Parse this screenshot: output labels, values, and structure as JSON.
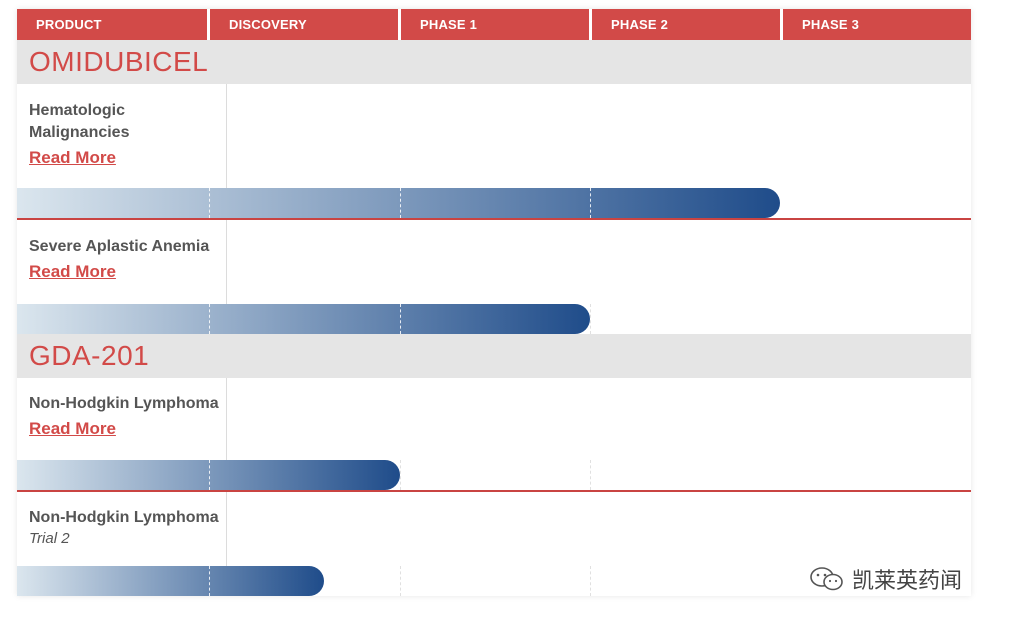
{
  "header": {
    "columns": [
      "PRODUCT",
      "DISCOVERY",
      "PHASE 1",
      "PHASE 2",
      "PHASE 3"
    ]
  },
  "read_more_label": "Read More",
  "colors": {
    "header_bg": "#d24a48",
    "accent_red": "#d24a48",
    "band_bg": "#e5e5e5",
    "bar_start": "#dbe6ee",
    "bar_end": "#1f4c8a"
  },
  "products": [
    {
      "name": "OMIDUBICEL",
      "programs": [
        {
          "indication": [
            "Hematologic",
            "Malignancies"
          ],
          "subtitle": "",
          "read_more": true,
          "progress_stage": "PHASE 3",
          "progress_fraction_of_stage": 0.0
        },
        {
          "indication": [
            "Severe Aplastic Anemia"
          ],
          "subtitle": "",
          "read_more": true,
          "progress_stage": "PHASE 2",
          "progress_fraction_of_stage": 0.0
        }
      ]
    },
    {
      "name": "GDA-201",
      "programs": [
        {
          "indication": [
            "Non-Hodgkin Lymphoma"
          ],
          "subtitle": "",
          "read_more": true,
          "progress_stage": "PHASE 1",
          "progress_fraction_of_stage": 0.0
        },
        {
          "indication": [
            "Non-Hodgkin Lymphoma"
          ],
          "subtitle": "Trial 2",
          "read_more": false,
          "progress_stage": "DISCOVERY",
          "progress_fraction_of_stage": 0.6
        }
      ]
    }
  ],
  "chart_data": {
    "type": "bar",
    "orientation": "horizontal",
    "stages": [
      "PRODUCT",
      "DISCOVERY",
      "PHASE 1",
      "PHASE 2",
      "PHASE 3"
    ],
    "series": [
      {
        "product": "OMIDUBICEL",
        "indication": "Hematologic Malignancies",
        "reached_stage": "PHASE 2 (complete, reaching PHASE 3)"
      },
      {
        "product": "OMIDUBICEL",
        "indication": "Severe Aplastic Anemia",
        "reached_stage": "PHASE 1 (complete, reaching PHASE 2)"
      },
      {
        "product": "GDA-201",
        "indication": "Non-Hodgkin Lymphoma",
        "reached_stage": "DISCOVERY (complete, reaching PHASE 1)"
      },
      {
        "product": "GDA-201",
        "indication": "Non-Hodgkin Lymphoma Trial 2",
        "reached_stage": "DISCOVERY (partial)"
      }
    ]
  },
  "watermark": {
    "text": "凯莱英药闻",
    "icon": "wechat-icon"
  }
}
